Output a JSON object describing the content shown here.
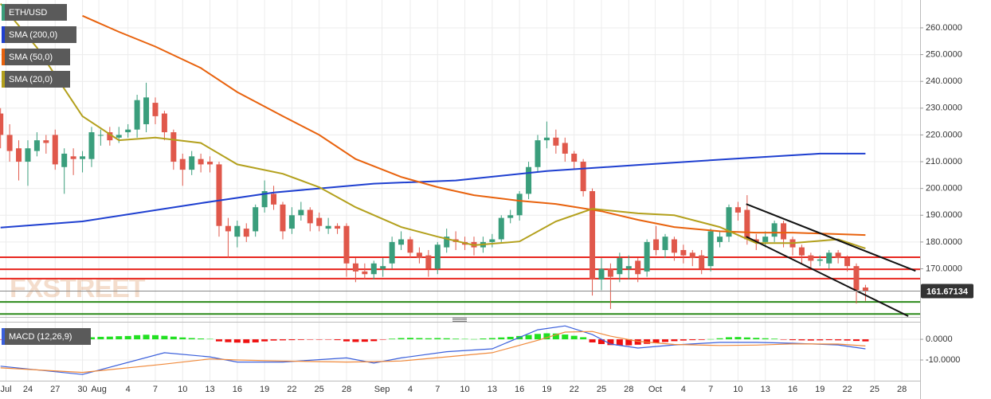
{
  "chart_data": [
    {
      "type": "candlestick",
      "symbol": "ETH/USD",
      "up_color": "#3a9e7c",
      "down_color": "#e0584b",
      "xlim": [
        -0.06,
        101
      ],
      "ylim": [
        152,
        270.4
      ],
      "yticks": [
        {
          "value": 170,
          "label": "170.0000"
        },
        {
          "value": 180,
          "label": "180.0000"
        },
        {
          "value": 190,
          "label": "190.0000"
        },
        {
          "value": 200,
          "label": "200.0000"
        },
        {
          "value": 210,
          "label": "210.0000"
        },
        {
          "value": 220,
          "label": "220.0000"
        },
        {
          "value": 230,
          "label": "230.0000"
        },
        {
          "value": 240,
          "label": "240.0000"
        },
        {
          "value": 250,
          "label": "250.0000"
        },
        {
          "value": 260,
          "label": "260.0000"
        }
      ],
      "grid": true,
      "x": [
        0,
        1,
        2,
        3,
        4,
        5,
        6,
        7,
        8,
        9,
        10,
        11,
        12,
        13,
        14,
        15,
        16,
        17,
        18,
        19,
        20,
        21,
        22,
        23,
        24,
        25,
        26,
        27,
        28,
        29,
        30,
        31,
        32,
        33,
        34,
        35,
        36,
        37,
        38,
        39,
        40,
        41,
        42,
        43,
        44,
        45,
        46,
        47,
        48,
        49,
        50,
        51,
        52,
        53,
        54,
        55,
        56,
        57,
        58,
        59,
        60,
        61,
        62,
        63,
        64,
        65,
        66,
        67,
        68,
        69,
        70,
        71,
        72,
        73,
        74,
        75,
        76,
        77,
        78,
        79,
        80,
        81,
        82,
        83,
        84,
        85,
        86,
        87,
        88,
        89,
        90,
        91,
        92,
        93,
        94,
        95
      ],
      "open": [
        228,
        220,
        215,
        210,
        214,
        218,
        220,
        208,
        212,
        211,
        211,
        220,
        221,
        219,
        221,
        222,
        224,
        232,
        228,
        221,
        211,
        207,
        211,
        210,
        209,
        186,
        182,
        185,
        184,
        193,
        198,
        194,
        185,
        190,
        192,
        189,
        185,
        186,
        186,
        172,
        169,
        168,
        170,
        172,
        179,
        181,
        176,
        175,
        170,
        178,
        181,
        180,
        180,
        178,
        180,
        181,
        189,
        190,
        198,
        208,
        218,
        219,
        217,
        213,
        210,
        199,
        166,
        170,
        168,
        170,
        173,
        169,
        181,
        177,
        181,
        177,
        176,
        175,
        171,
        180,
        182,
        193,
        192,
        181,
        180,
        182,
        187,
        181,
        178,
        175,
        173,
        172,
        176,
        174,
        171,
        163
      ],
      "high": [
        230,
        224,
        218,
        218,
        221,
        220,
        222,
        215,
        215,
        214,
        223,
        222,
        223,
        223,
        224,
        235,
        239.5,
        234,
        229,
        222,
        213,
        214,
        213,
        212,
        210,
        189,
        188,
        187,
        194,
        203,
        201,
        195,
        193,
        195,
        193,
        191,
        189,
        187,
        187,
        174,
        172,
        173,
        174,
        182,
        184,
        182,
        178,
        177,
        180,
        185,
        184,
        182,
        182,
        182,
        183,
        190,
        192,
        199,
        210,
        220,
        225,
        222,
        219,
        214,
        211,
        200,
        174,
        172,
        176,
        175,
        174,
        181,
        186,
        183,
        182,
        179,
        177,
        177,
        185,
        184,
        194,
        195,
        197.5,
        183,
        184,
        188,
        188,
        182,
        179,
        176,
        175,
        177,
        177,
        175,
        172,
        164
      ],
      "low": [
        215,
        210,
        203,
        201,
        212,
        213,
        207,
        198,
        205,
        206,
        208,
        216,
        216,
        217,
        219,
        219,
        221,
        224,
        218,
        207,
        201,
        205,
        206,
        206,
        182,
        174,
        178,
        180,
        182,
        191,
        192,
        181,
        183,
        188,
        184,
        184,
        183,
        183,
        167,
        165,
        166,
        166,
        167,
        170,
        177,
        174,
        172,
        167,
        168,
        176,
        177,
        177,
        175,
        176,
        178,
        180,
        187,
        188,
        196,
        206,
        215,
        213,
        210,
        207,
        197,
        160,
        162,
        155,
        165,
        166,
        165,
        167,
        175,
        174,
        173,
        172,
        171,
        168,
        169,
        178,
        180,
        188,
        179,
        177,
        178,
        180,
        178,
        175,
        172,
        170,
        171,
        170,
        172,
        169,
        157,
        158
      ],
      "close": [
        220,
        214,
        210,
        215,
        218,
        217,
        209,
        213,
        211,
        212,
        221,
        220,
        218,
        220,
        222,
        233,
        234,
        227,
        221,
        210,
        207,
        212,
        209,
        209,
        186,
        184,
        186,
        182,
        193,
        199,
        194,
        184,
        190,
        192,
        187,
        186,
        186,
        185,
        172,
        169,
        168,
        172,
        171,
        180,
        181,
        176,
        174,
        170,
        179,
        182,
        180,
        179,
        178,
        180,
        181,
        189,
        190,
        198,
        208,
        218,
        219,
        216,
        213,
        210,
        199,
        166,
        170,
        167,
        174,
        171,
        168,
        180,
        177,
        182,
        176,
        175,
        174,
        170,
        184,
        182,
        193,
        191,
        181,
        180,
        182,
        187,
        181,
        178,
        175,
        173,
        173.5,
        176,
        174,
        171,
        162,
        161.67134
      ],
      "series": [
        {
          "name": "SMA (200,0)",
          "color": "#1e3fd0",
          "x": [
            0,
            9,
            22,
            30,
            41,
            50,
            60,
            70,
            80,
            90,
            95
          ],
          "values": [
            185.4,
            187.7,
            194.5,
            198.5,
            201.8,
            203,
            206.5,
            208.8,
            211,
            213,
            213
          ]
        },
        {
          "name": "SMA (50,0)",
          "color": "#e8620d",
          "x": [
            9,
            13,
            17,
            22,
            26,
            31,
            35,
            39,
            44,
            48,
            52,
            57,
            61,
            66,
            70,
            74,
            79,
            83,
            87,
            95
          ],
          "values": [
            264.5,
            258.5,
            253,
            245,
            236,
            227,
            220,
            211,
            204.3,
            200.5,
            197.5,
            195.4,
            194.2,
            191.5,
            188.3,
            185.6,
            184,
            183.5,
            183.5,
            182.6
          ]
        },
        {
          "name": "SMA (20,0)",
          "color": "#b3a01c",
          "x": [
            0,
            4,
            9,
            13,
            17,
            22,
            26,
            31,
            35,
            39,
            44,
            48,
            52,
            57,
            61,
            65,
            70,
            74,
            79,
            83,
            87,
            92,
            95
          ],
          "values": [
            269,
            252.6,
            227,
            218,
            219,
            217,
            209,
            205.5,
            200.5,
            193,
            185.6,
            182,
            178.8,
            180.2,
            187.7,
            192.4,
            190.7,
            190,
            185.6,
            179.6,
            179.6,
            181,
            177.6
          ]
        }
      ],
      "levels": [
        {
          "value": 174.3,
          "color": "#e8261e"
        },
        {
          "value": 169.8,
          "color": "#e8261e"
        },
        {
          "value": 166.3,
          "color": "#e8261e"
        },
        {
          "value": 157.6,
          "color": "#2c8a1a"
        },
        {
          "value": 153.1,
          "color": "#2c8a1a"
        }
      ],
      "trendlines": [
        {
          "color": "#111111",
          "x": [
            81.9,
            100.5
          ],
          "y": [
            194.2,
            169.2
          ]
        },
        {
          "color": "#111111",
          "x": [
            81.9,
            99.7
          ],
          "y": [
            182,
            152.3
          ]
        }
      ],
      "watermark": "FXSTREET"
    },
    {
      "type": "macd",
      "title": "MACD (12,26,9)",
      "xlim": [
        -0.06,
        101
      ],
      "ylim": [
        -20,
        8.1
      ],
      "yticks": [
        {
          "value": 0,
          "label": "0.0000"
        },
        {
          "value": -10,
          "label": "-10.0000"
        }
      ],
      "xticks": [
        {
          "value": 0.6,
          "label": "Jul"
        },
        {
          "value": 3,
          "label": "24"
        },
        {
          "value": 6,
          "label": "27"
        },
        {
          "value": 9,
          "label": "30"
        },
        {
          "value": 10.8,
          "label": "Aug"
        },
        {
          "value": 14,
          "label": "4"
        },
        {
          "value": 17,
          "label": "7"
        },
        {
          "value": 20,
          "label": "10"
        },
        {
          "value": 23,
          "label": "13"
        },
        {
          "value": 26,
          "label": "16"
        },
        {
          "value": 29,
          "label": "19"
        },
        {
          "value": 32,
          "label": "22"
        },
        {
          "value": 35,
          "label": "25"
        },
        {
          "value": 38,
          "label": "28"
        },
        {
          "value": 41.9,
          "label": "Sep"
        },
        {
          "value": 45,
          "label": "4"
        },
        {
          "value": 48,
          "label": "7"
        },
        {
          "value": 51,
          "label": "10"
        },
        {
          "value": 54,
          "label": "13"
        },
        {
          "value": 57,
          "label": "16"
        },
        {
          "value": 60,
          "label": "19"
        },
        {
          "value": 63,
          "label": "22"
        },
        {
          "value": 66,
          "label": "25"
        },
        {
          "value": 69,
          "label": "28"
        },
        {
          "value": 71.9,
          "label": "Oct"
        },
        {
          "value": 75,
          "label": "4"
        },
        {
          "value": 78,
          "label": "7"
        },
        {
          "value": 81,
          "label": "10"
        },
        {
          "value": 84,
          "label": "13"
        },
        {
          "value": 87,
          "label": "16"
        },
        {
          "value": 90,
          "label": "19"
        },
        {
          "value": 93,
          "label": "22"
        },
        {
          "value": 96,
          "label": "25"
        },
        {
          "value": 99,
          "label": "28"
        }
      ],
      "hist_up_color": "#22e022",
      "hist_down_color": "#ee1111",
      "x": [
        0,
        1,
        2,
        3,
        4,
        5,
        6,
        7,
        8,
        9,
        10,
        11,
        12,
        13,
        14,
        15,
        16,
        17,
        18,
        19,
        20,
        21,
        22,
        23,
        24,
        25,
        26,
        27,
        28,
        29,
        30,
        31,
        32,
        33,
        34,
        35,
        36,
        37,
        38,
        39,
        40,
        41,
        42,
        43,
        44,
        45,
        46,
        47,
        48,
        49,
        50,
        51,
        52,
        53,
        54,
        55,
        56,
        57,
        58,
        59,
        60,
        61,
        62,
        63,
        64,
        65,
        66,
        67,
        68,
        69,
        70,
        71,
        72,
        73,
        74,
        75,
        76,
        77,
        78,
        79,
        80,
        81,
        82,
        83,
        84,
        85,
        86,
        87,
        88,
        89,
        90,
        91,
        92,
        93,
        94,
        95
      ],
      "histogram": [
        -0.2,
        -0.3,
        -0.2,
        -0.1,
        0.2,
        0.3,
        0.2,
        0.1,
        0.3,
        0.8,
        1.0,
        1.2,
        1.3,
        1.5,
        1.6,
        2.0,
        2.2,
        2.0,
        1.7,
        1.3,
        0.9,
        0.6,
        0.4,
        0.2,
        -1.0,
        -1.4,
        -1.6,
        -1.8,
        -1.5,
        -1.0,
        -0.6,
        -0.5,
        -0.4,
        -0.3,
        -0.2,
        -0.2,
        -0.1,
        -0.4,
        -1.0,
        -1.3,
        -1.2,
        -0.9,
        -0.2,
        0.3,
        0.6,
        0.7,
        0.6,
        0.5,
        0.6,
        0.5,
        0.3,
        0.2,
        0.1,
        0.4,
        0.6,
        0.9,
        1.2,
        1.6,
        2.1,
        2.6,
        2.9,
        2.8,
        2.3,
        1.7,
        1.0,
        -1.5,
        -2.3,
        -2.8,
        -3.0,
        -2.9,
        -2.6,
        -2.2,
        -1.8,
        -1.3,
        -0.9,
        -0.6,
        -0.4,
        -0.3,
        0.1,
        0.5,
        1.0,
        1.1,
        0.9,
        0.7,
        0.5,
        0.3,
        -0.2,
        -0.4,
        -0.5,
        -0.6,
        -0.5,
        -0.4,
        -0.5,
        -0.6,
        -0.8,
        -1.0
      ],
      "series": [
        {
          "color": "#3a5fdb",
          "x": [
            0,
            9,
            18,
            23,
            26,
            31,
            38,
            41,
            44,
            49,
            54,
            59,
            62,
            65,
            67,
            70,
            74,
            79,
            83,
            87,
            92,
            95
          ],
          "values": [
            -13,
            -17,
            -6.5,
            -8.5,
            -11,
            -11,
            -9,
            -11.5,
            -9,
            -6,
            -4.6,
            4.6,
            6.5,
            2.3,
            -2.3,
            -4.2,
            -2.7,
            -1.5,
            -1.5,
            -1.9,
            -2.7,
            -4.6
          ]
        },
        {
          "color": "#f08a3c",
          "x": [
            0,
            9,
            18,
            23,
            26,
            31,
            38,
            41,
            44,
            49,
            54,
            59,
            62,
            65,
            67,
            70,
            74,
            79,
            83,
            87,
            92,
            95
          ],
          "values": [
            -13.8,
            -16,
            -12,
            -9.5,
            -10,
            -10.5,
            -11,
            -10.8,
            -10.5,
            -8.5,
            -6.5,
            -0.5,
            3.5,
            3.8,
            1.5,
            -1,
            -2.5,
            -3,
            -2.8,
            -2.2,
            -2.3,
            -3.2
          ]
        }
      ]
    }
  ]
}
